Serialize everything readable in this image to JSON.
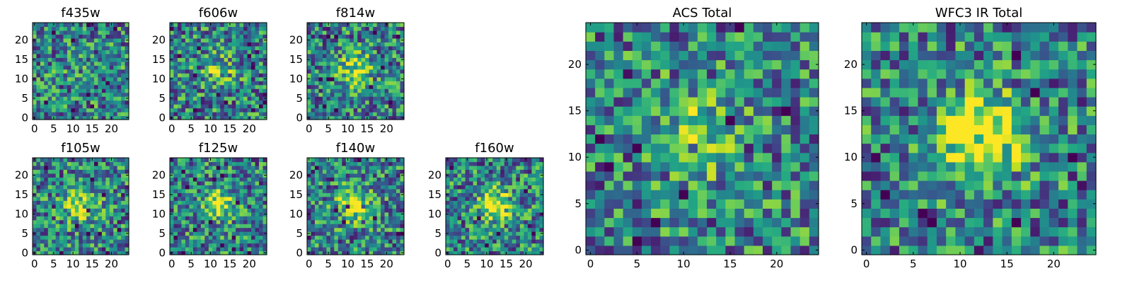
{
  "figure": {
    "description_colormap": "viridis"
  },
  "chart_data": [
    {
      "type": "heatmap",
      "title": "f435w",
      "xlim": [
        0,
        24
      ],
      "ylim": [
        0,
        24
      ],
      "xticks": [
        "0",
        "5",
        "10",
        "15",
        "20"
      ],
      "yticks": [
        "0",
        "5",
        "10",
        "15",
        "20"
      ],
      "center_peak": 0.05,
      "seed": 11
    },
    {
      "type": "heatmap",
      "title": "f606w",
      "xlim": [
        0,
        24
      ],
      "ylim": [
        0,
        24
      ],
      "xticks": [
        "0",
        "5",
        "10",
        "15",
        "20"
      ],
      "yticks": [
        "0",
        "5",
        "10",
        "15",
        "20"
      ],
      "center_peak": 0.25,
      "seed": 22
    },
    {
      "type": "heatmap",
      "title": "f814w",
      "xlim": [
        0,
        24
      ],
      "ylim": [
        0,
        24
      ],
      "xticks": [
        "0",
        "5",
        "10",
        "15",
        "20"
      ],
      "yticks": [
        "0",
        "5",
        "10",
        "15",
        "20"
      ],
      "center_peak": 0.4,
      "seed": 33
    },
    {
      "type": "heatmap",
      "title": "f105w",
      "xlim": [
        0,
        24
      ],
      "ylim": [
        0,
        24
      ],
      "xticks": [
        "0",
        "5",
        "10",
        "15",
        "20"
      ],
      "yticks": [
        "0",
        "5",
        "10",
        "15",
        "20"
      ],
      "center_peak": 0.45,
      "seed": 44
    },
    {
      "type": "heatmap",
      "title": "f125w",
      "xlim": [
        0,
        24
      ],
      "ylim": [
        0,
        24
      ],
      "xticks": [
        "0",
        "5",
        "10",
        "15",
        "20"
      ],
      "yticks": [
        "0",
        "5",
        "10",
        "15",
        "20"
      ],
      "center_peak": 0.45,
      "seed": 55
    },
    {
      "type": "heatmap",
      "title": "f140w",
      "xlim": [
        0,
        24
      ],
      "ylim": [
        0,
        24
      ],
      "xticks": [
        "0",
        "5",
        "10",
        "15",
        "20"
      ],
      "yticks": [
        "0",
        "5",
        "10",
        "15",
        "20"
      ],
      "center_peak": 0.45,
      "seed": 66
    },
    {
      "type": "heatmap",
      "title": "f160w",
      "xlim": [
        0,
        24
      ],
      "ylim": [
        0,
        24
      ],
      "xticks": [
        "0",
        "5",
        "10",
        "15",
        "20"
      ],
      "yticks": [
        "0",
        "5",
        "10",
        "15",
        "20"
      ],
      "center_peak": 0.5,
      "seed": 77
    },
    {
      "type": "heatmap",
      "title": "ACS Total",
      "xlim": [
        0,
        24
      ],
      "ylim": [
        0,
        24
      ],
      "xticks": [
        "0",
        "5",
        "10",
        "15",
        "20"
      ],
      "yticks": [
        "0",
        "5",
        "10",
        "15",
        "20"
      ],
      "center_peak": 0.35,
      "seed": 88
    },
    {
      "type": "heatmap",
      "title": "WFC3 IR Total",
      "xlim": [
        0,
        24
      ],
      "ylim": [
        0,
        24
      ],
      "xticks": [
        "0",
        "5",
        "10",
        "15",
        "20"
      ],
      "yticks": [
        "0",
        "5",
        "10",
        "15",
        "20"
      ],
      "center_peak": 0.75,
      "seed": 99
    }
  ]
}
